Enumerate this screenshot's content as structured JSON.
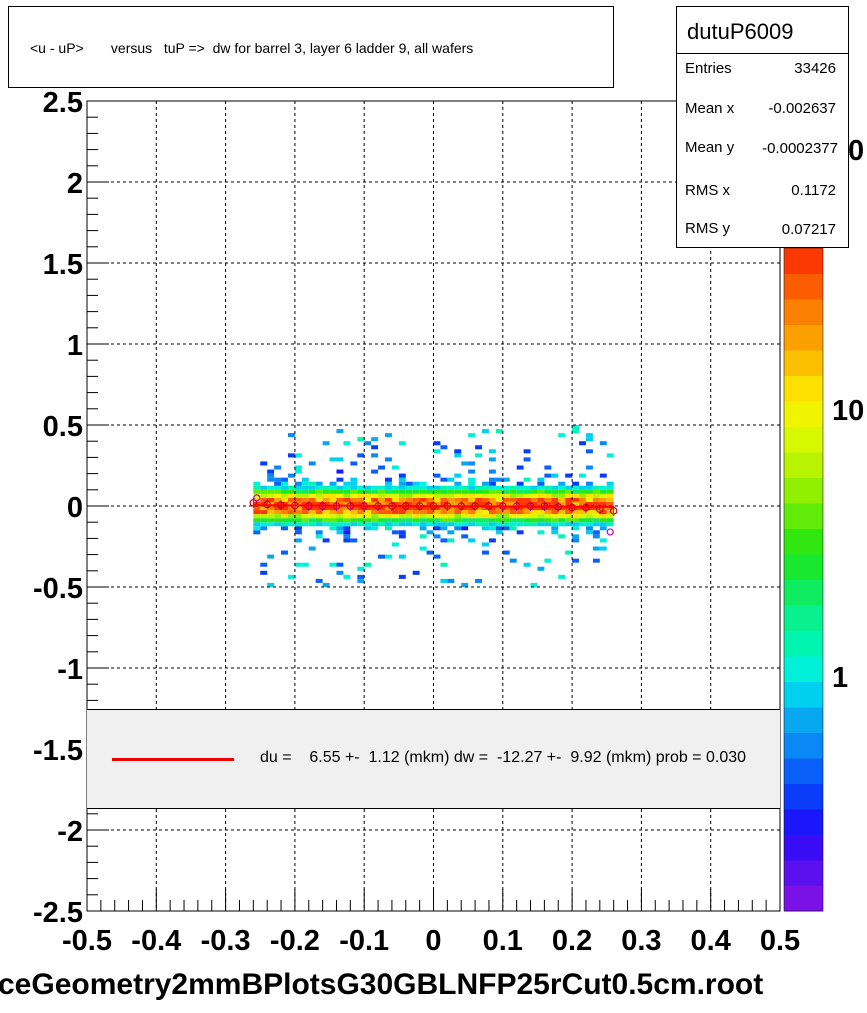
{
  "title": "<u - uP>       versus   tuP =>  dw for barrel 3, layer 6 ladder 9, all wafers",
  "stats": {
    "name": "dutuP6009",
    "rows": [
      {
        "label": "Entries",
        "value": "33426"
      },
      {
        "label": "Mean x",
        "value": "-0.002637"
      },
      {
        "label": "Mean y",
        "value": "-0.0002377"
      },
      {
        "label": "RMS x",
        "value": "0.1172"
      },
      {
        "label": "RMS y",
        "value": "0.07217"
      }
    ]
  },
  "fit_text": "du =    6.55 +-  1.12 (mkm) dw =  -12.27 +-  9.92 (mkm) prob = 0.030",
  "bottom_title": "ceGeometry2mmBPlotsG30GBLNFP25rCut0.5cm.root",
  "palette_labels": [
    "1",
    "10",
    "0"
  ],
  "colors": {
    "fit_line": "#ff0000",
    "profile_marker": "#cc0000"
  },
  "chart_data": {
    "type": "heatmap",
    "title": "<u - uP>       versus   tuP =>  dw for barrel 3, layer 6 ladder 9, all wafers",
    "xlim": [
      -0.5,
      0.5
    ],
    "ylim": [
      -2.5,
      2.5
    ],
    "x_ticks": [
      "-0.5",
      "-0.4",
      "-0.3",
      "-0.2",
      "-0.1",
      "0",
      "0.1",
      "0.2",
      "0.3",
      "0.4",
      "0.5"
    ],
    "y_ticks": [
      "2.5",
      "2",
      "1.5",
      "1",
      "0.5",
      "0",
      "-0.5",
      "-1",
      "-1.5",
      "-2",
      "-2.5"
    ],
    "grid": true,
    "log_z": true,
    "data_extent": {
      "x": [
        -0.26,
        0.26
      ],
      "y": [
        -0.5,
        0.5
      ]
    },
    "profile": {
      "x": [
        -0.26,
        -0.24,
        -0.22,
        -0.2,
        -0.18,
        -0.16,
        -0.14,
        -0.12,
        -0.1,
        -0.08,
        -0.06,
        -0.04,
        -0.02,
        0.0,
        0.02,
        0.04,
        0.06,
        0.08,
        0.1,
        0.12,
        0.14,
        0.16,
        0.18,
        0.2,
        0.22,
        0.24,
        0.26
      ],
      "y": [
        0.02,
        0.01,
        0.005,
        0.003,
        0.0,
        0.0,
        0.0,
        0.0,
        0.0,
        0.0,
        0.0,
        0.0,
        0.0,
        0.0,
        0.0,
        0.0,
        0.0,
        0.0,
        0.0,
        0.0,
        0.0,
        0.0,
        -0.005,
        -0.01,
        -0.01,
        -0.02,
        -0.03
      ]
    },
    "fit_line": {
      "x": [
        -0.26,
        0.26
      ],
      "y": [
        0.005,
        -0.006
      ]
    }
  }
}
